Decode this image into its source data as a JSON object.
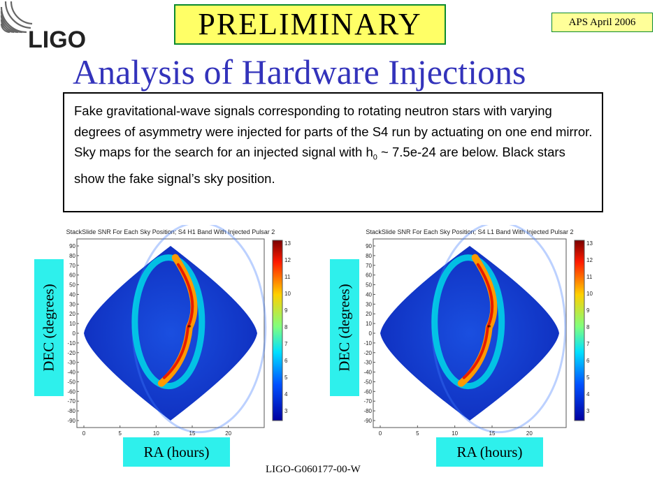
{
  "logo": {
    "text": "LIGO"
  },
  "preliminary": "PRELIMINARY",
  "conference": "APS April 2006",
  "title": "Analysis of Hardware Injections",
  "body": {
    "part1": "Fake gravitational-wave signals corresponding to rotating neutron stars with varying degrees of asymmetry were injected for parts of the S4 run by actuating on one end mirror.  Sky maps for the search for an injected signal with h",
    "sub": "0",
    "part2": " ~ 7.5e-24 are below. Black stars show the fake signal’s sky position."
  },
  "chart_data": [
    {
      "type": "heatmap",
      "title": "StackSlide SNR For Each Sky Position; S4 H1 Band With Injected Pulsar 2",
      "xlabel": "RA (hours)",
      "ylabel": "DEC (degrees)",
      "xticks": [
        0,
        5,
        10,
        15,
        20
      ],
      "yticks": [
        90,
        80,
        70,
        60,
        50,
        40,
        30,
        20,
        10,
        0,
        -10,
        -20,
        -30,
        -40,
        -50,
        -60,
        -70,
        -80,
        -90
      ],
      "xlim": [
        0,
        24
      ],
      "ylim": [
        -90,
        90
      ],
      "colorbar_ticks": [
        13,
        12,
        11,
        10,
        9,
        8,
        7,
        6,
        5,
        4,
        3
      ],
      "injection": {
        "ra": 14.6,
        "dec": 6
      }
    },
    {
      "type": "heatmap",
      "title": "StackSlide SNR For Each Sky Position; S4 L1 Band With Injected Pulsar 2",
      "xlabel": "RA (hours)",
      "ylabel": "DEC (degrees)",
      "xticks": [
        0,
        5,
        10,
        15,
        20
      ],
      "yticks": [
        90,
        80,
        70,
        60,
        50,
        40,
        30,
        20,
        10,
        0,
        -10,
        -20,
        -30,
        -40,
        -50,
        -60,
        -70,
        -80,
        -90
      ],
      "xlim": [
        0,
        24
      ],
      "ylim": [
        -90,
        90
      ],
      "colorbar_ticks": [
        13,
        12,
        11,
        10,
        9,
        8,
        7,
        6,
        5,
        4,
        3
      ],
      "injection": {
        "ra": 14.6,
        "dec": 6
      }
    }
  ],
  "footer": "LIGO-G060177-00-W"
}
